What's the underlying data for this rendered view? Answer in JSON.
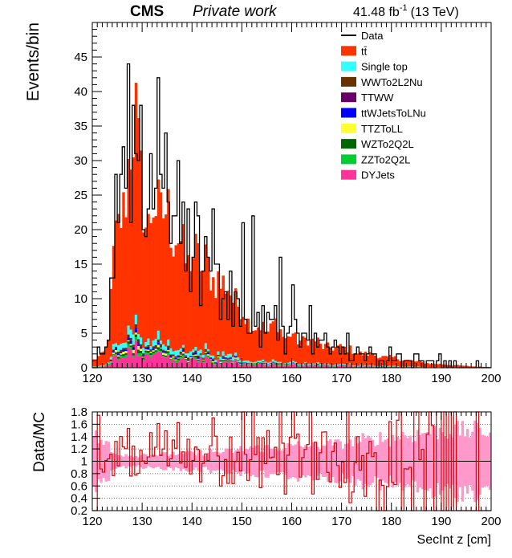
{
  "header": {
    "experiment": "CMS",
    "label": "Private work",
    "lumi_value": "41.48 fb",
    "lumi_exp": "-1",
    "energy": "(13 TeV)"
  },
  "chart_data": [
    {
      "type": "bar",
      "stacked": true,
      "xlabel": "",
      "ylabel": "Events/bin",
      "xlim": [
        120,
        200
      ],
      "ylim": [
        0,
        50
      ],
      "xticks": [
        "120",
        "130",
        "140",
        "150",
        "160",
        "170",
        "180",
        "190",
        "200"
      ],
      "yticks": [
        "0",
        "5",
        "10",
        "15",
        "20",
        "25",
        "30",
        "35",
        "40",
        "45"
      ],
      "bin_width": 0.5,
      "grid": false,
      "legend_position": "top-right",
      "legend": [
        {
          "name": "Data",
          "color": "#000000",
          "style": "line"
        },
        {
          "name": "tt̄",
          "color": "#ff3300",
          "style": "fill"
        },
        {
          "name": "Single top",
          "color": "#33ffff",
          "style": "fill"
        },
        {
          "name": "WWTo2L2Nu",
          "color": "#663300",
          "style": "fill"
        },
        {
          "name": "TTWW",
          "color": "#660066",
          "style": "fill"
        },
        {
          "name": "ttWJetsToLNu",
          "color": "#0000ff",
          "style": "fill"
        },
        {
          "name": "TTZToLL",
          "color": "#ffff33",
          "style": "fill"
        },
        {
          "name": "WZTo2Q2L",
          "color": "#006600",
          "style": "fill"
        },
        {
          "name": "ZZTo2Q2L",
          "color": "#00cc33",
          "style": "fill"
        },
        {
          "name": "DYJets",
          "color": "#ff3399",
          "style": "fill"
        }
      ],
      "mc_profile": [
        [
          120,
          1
        ],
        [
          121,
          1.5
        ],
        [
          122,
          2
        ],
        [
          123,
          3
        ],
        [
          123.5,
          6
        ],
        [
          124,
          14
        ],
        [
          125,
          20
        ],
        [
          126,
          22
        ],
        [
          127,
          26
        ],
        [
          128,
          33
        ],
        [
          128.5,
          37
        ],
        [
          129,
          34
        ],
        [
          130,
          26
        ],
        [
          131,
          18
        ],
        [
          132,
          24
        ],
        [
          133,
          22
        ],
        [
          134,
          22
        ],
        [
          135,
          24
        ],
        [
          136,
          19
        ],
        [
          137,
          20
        ],
        [
          138,
          18
        ],
        [
          139,
          15
        ],
        [
          140,
          16
        ],
        [
          141,
          17
        ],
        [
          142,
          14
        ],
        [
          143,
          15
        ],
        [
          144,
          13
        ],
        [
          145,
          13
        ],
        [
          146,
          12
        ],
        [
          147,
          12
        ],
        [
          148,
          10
        ],
        [
          149,
          9
        ],
        [
          150,
          9
        ],
        [
          151,
          7
        ],
        [
          152,
          6
        ],
        [
          153,
          6
        ],
        [
          154,
          6
        ],
        [
          155,
          5
        ],
        [
          156,
          6
        ],
        [
          157,
          7
        ],
        [
          158,
          5
        ],
        [
          159,
          4
        ],
        [
          160,
          5
        ],
        [
          161,
          4
        ],
        [
          162,
          4
        ],
        [
          163,
          4
        ],
        [
          164,
          4
        ],
        [
          165,
          4
        ],
        [
          166,
          3
        ],
        [
          167,
          3
        ],
        [
          168,
          3
        ],
        [
          169,
          3
        ],
        [
          170,
          3
        ],
        [
          172,
          2.5
        ],
        [
          174,
          2
        ],
        [
          176,
          2
        ],
        [
          178,
          1.5
        ],
        [
          180,
          1.5
        ],
        [
          182,
          1.2
        ],
        [
          184,
          1
        ],
        [
          186,
          0.8
        ],
        [
          188,
          0.6
        ],
        [
          190,
          0.5
        ],
        [
          192,
          0.4
        ],
        [
          194,
          0.3
        ],
        [
          196,
          0.2
        ],
        [
          198,
          0.15
        ],
        [
          200,
          0.1
        ]
      ],
      "data_peaks": [
        [
          123.5,
          13
        ],
        [
          124.5,
          28
        ],
        [
          125.5,
          28
        ],
        [
          126,
          32
        ],
        [
          127,
          44
        ],
        [
          128,
          38
        ],
        [
          129,
          30
        ],
        [
          131,
          23
        ],
        [
          133,
          42
        ],
        [
          134.5,
          34
        ],
        [
          137,
          30
        ],
        [
          140.5,
          24
        ],
        [
          144,
          23
        ],
        [
          147.5,
          14
        ],
        [
          150,
          21
        ],
        [
          152,
          22
        ],
        [
          157.5,
          16
        ],
        [
          160,
          12
        ],
        [
          163.5,
          9
        ],
        [
          171,
          5
        ]
      ],
      "series_fractions": {
        "tt̄": 0.84,
        "Single top": 0.035,
        "WWTo2L2Nu": 0.01,
        "TTWW": 0.005,
        "ttWJetsToLNu": 0.01,
        "TTZToLL": 0.01,
        "WZTo2Q2L": 0.01,
        "ZZTo2Q2L": 0.01,
        "DYJets": 0.07
      }
    },
    {
      "type": "line",
      "xlabel": "SecInt z [cm]",
      "ylabel": "Data/MC",
      "xlim": [
        120,
        200
      ],
      "ylim": [
        0.2,
        1.8
      ],
      "xticks": [
        "120",
        "130",
        "140",
        "150",
        "160",
        "170",
        "180",
        "190",
        "200"
      ],
      "yticks": [
        "0.2",
        "0.4",
        "0.6",
        "0.8",
        "1",
        "1.2",
        "1.4",
        "1.6",
        "1.8"
      ],
      "grid": "dotted-horizontal",
      "reference_line": 1.0,
      "uncertainty_band_color": "#ff99cc",
      "ratio_color": "#dd0000"
    }
  ]
}
